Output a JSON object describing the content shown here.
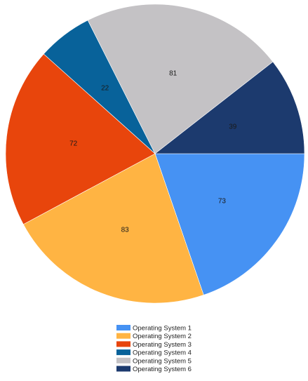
{
  "chart_data": {
    "type": "pie",
    "start_angle_deg": 0,
    "direction": "clockwise",
    "legend_position": "bottom",
    "data_labels": true,
    "slices": [
      {
        "name": "Operating System 1",
        "value": 73,
        "color": "#4692F3"
      },
      {
        "name": "Operating System 2",
        "value": 83,
        "color": "#FFB443"
      },
      {
        "name": "Operating System 3",
        "value": 72,
        "color": "#E8450C"
      },
      {
        "name": "Operating System 4",
        "value": 22,
        "color": "#08629A"
      },
      {
        "name": "Operating System 5",
        "value": 81,
        "color": "#C4C2C5"
      },
      {
        "name": "Operating System 6",
        "value": 39,
        "color": "#1C3A6E"
      }
    ]
  }
}
